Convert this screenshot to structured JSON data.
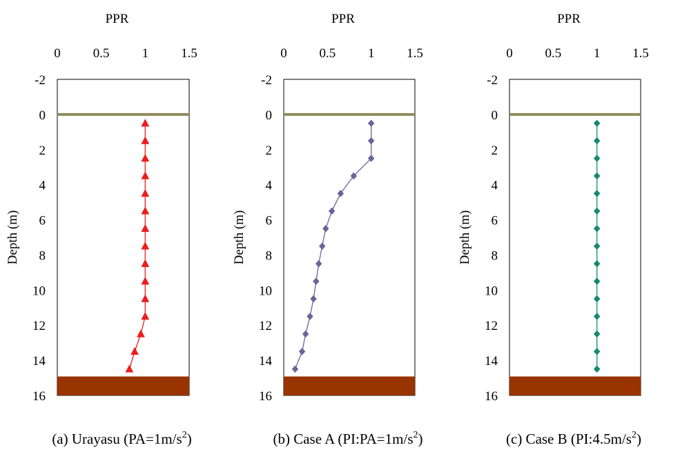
{
  "chart_data": [
    {
      "type": "line",
      "x_axis_title": "PPR",
      "y_axis_title": "Depth (m)",
      "xlim": [
        0,
        1.5
      ],
      "ylim": [
        -2,
        16
      ],
      "y_inverted": true,
      "x_position": "top",
      "x_ticks": [
        "0",
        "0.5",
        "1",
        "1.5"
      ],
      "y_ticks": [
        "-2",
        "0",
        "2",
        "4",
        "6",
        "8",
        "10",
        "12",
        "14",
        "16"
      ],
      "caption_prefix": "(a) Urayasu (PA=1m/s",
      "caption_sup": "2",
      "caption_suffix": ")",
      "ground_surface_depth": 0,
      "base_layer_depth": [
        15,
        16
      ],
      "surface_color": "#8f8a5a",
      "base_color": "#993300",
      "series": [
        {
          "marker": "triangle",
          "color": "#ee1c1c",
          "x": [
            1.0,
            1.0,
            1.0,
            1.0,
            1.0,
            1.0,
            1.0,
            1.0,
            1.0,
            1.0,
            1.0,
            1.0,
            0.95,
            0.88,
            0.82
          ],
          "y": [
            0.5,
            1.5,
            2.5,
            3.5,
            4.5,
            5.5,
            6.5,
            7.5,
            8.5,
            9.5,
            10.5,
            11.5,
            12.5,
            13.5,
            14.5
          ]
        }
      ]
    },
    {
      "type": "line",
      "x_axis_title": "PPR",
      "y_axis_title": "Depth (m)",
      "xlim": [
        0,
        1.5
      ],
      "ylim": [
        -2,
        16
      ],
      "y_inverted": true,
      "x_position": "top",
      "x_ticks": [
        "0",
        "0.5",
        "1",
        "1.5"
      ],
      "y_ticks": [
        "-2",
        "0",
        "2",
        "4",
        "6",
        "8",
        "10",
        "12",
        "14",
        "16"
      ],
      "caption_prefix": "(b) Case A (PI:PA=1m/s",
      "caption_sup": "2",
      "caption_suffix": ")",
      "ground_surface_depth": 0,
      "base_layer_depth": [
        15,
        16
      ],
      "surface_color": "#8f8a5a",
      "base_color": "#993300",
      "series": [
        {
          "marker": "diamond",
          "color": "#666699",
          "x": [
            1.0,
            1.0,
            1.0,
            0.8,
            0.65,
            0.55,
            0.48,
            0.44,
            0.4,
            0.37,
            0.34,
            0.3,
            0.25,
            0.21,
            0.13
          ],
          "y": [
            0.5,
            1.5,
            2.5,
            3.5,
            4.5,
            5.5,
            6.5,
            7.5,
            8.5,
            9.5,
            10.5,
            11.5,
            12.5,
            13.5,
            14.5
          ]
        }
      ]
    },
    {
      "type": "line",
      "x_axis_title": "PPR",
      "y_axis_title": "Depth (m)",
      "xlim": [
        0,
        1.5
      ],
      "ylim": [
        -2,
        16
      ],
      "y_inverted": true,
      "x_position": "top",
      "x_ticks": [
        "0",
        "0.5",
        "1",
        "1.5"
      ],
      "y_ticks": [
        "-2",
        "0",
        "2",
        "4",
        "6",
        "8",
        "10",
        "12",
        "14",
        "16"
      ],
      "caption_prefix": "(c) Case B (PI:4.5m/s",
      "caption_sup": "2",
      "caption_suffix": ")",
      "ground_surface_depth": 0,
      "base_layer_depth": [
        15,
        16
      ],
      "surface_color": "#8f8a5a",
      "base_color": "#993300",
      "series": [
        {
          "marker": "diamond",
          "color": "#148a6e",
          "x": [
            1.0,
            1.0,
            1.0,
            1.0,
            1.0,
            1.0,
            1.0,
            1.0,
            1.0,
            1.0,
            1.0,
            1.0,
            1.0,
            1.0,
            1.0
          ],
          "y": [
            0.5,
            1.5,
            2.5,
            3.5,
            4.5,
            5.5,
            6.5,
            7.5,
            8.5,
            9.5,
            10.5,
            11.5,
            12.5,
            13.5,
            14.5
          ]
        }
      ]
    }
  ]
}
